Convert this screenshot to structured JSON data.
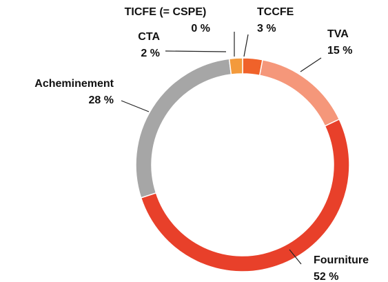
{
  "chart_data": {
    "type": "donut",
    "categories": [
      "TICFE (= CSPE)",
      "TCCFE",
      "TVA",
      "Fourniture",
      "Acheminement",
      "CTA"
    ],
    "values": [
      0,
      3,
      15,
      52,
      28,
      2
    ],
    "value_labels": [
      "0 %",
      "3 %",
      "15 %",
      "52 %",
      "28 %",
      "2 %"
    ],
    "colors": [
      "#e85a2a",
      "#f0622a",
      "#f5977a",
      "#e8402a",
      "#a6a6a6",
      "#f39a3c"
    ]
  }
}
